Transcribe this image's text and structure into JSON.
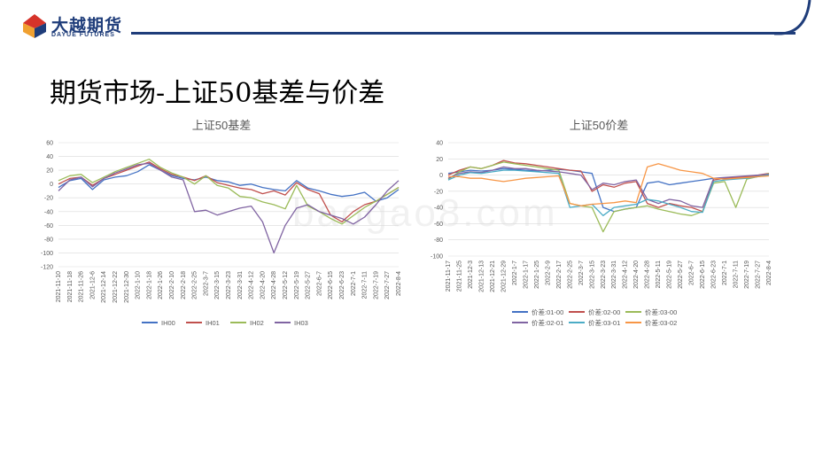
{
  "brand": {
    "name_cn": "大越期货",
    "name_en": "DAYUE FUTURES",
    "colors": {
      "navy": "#1f3d7a",
      "red": "#d6332a",
      "orange": "#f0a030"
    }
  },
  "page": {
    "title": "期货市场-上证50基差与价差"
  },
  "watermark": {
    "text": "baogao8.com"
  },
  "chart_data": [
    {
      "type": "line",
      "title": "上证50基差",
      "xlabel": "",
      "ylabel": "",
      "ylim": [
        -120,
        60
      ],
      "y_ticks": [
        "60",
        "40",
        "20",
        "0",
        "-20",
        "-40",
        "-60",
        "-80",
        "-100",
        "-120"
      ],
      "x_tick_labels": [
        "2021-11-10",
        "2021-11-18",
        "2021-11-26",
        "2021-12-6",
        "2021-12-14",
        "2021-12-22",
        "2021-12-30",
        "2022-1-10",
        "2022-1-18",
        "2022-1-26",
        "2022-2-10",
        "2022-2-18",
        "2022-2-25",
        "2022-3-7",
        "2022-3-15",
        "2022-3-23",
        "2022-3-31",
        "2022-4-12",
        "2022-4-20",
        "2022-4-28",
        "2022-5-12",
        "2022-5-19",
        "2022-5-27",
        "2022-6-7",
        "2022-6-15",
        "2022-6-23",
        "2022-7-1",
        "2022-7-11",
        "2022-7-19",
        "2022-7-27",
        "2022-8-4"
      ],
      "grid": true,
      "legend_position": "bottom",
      "series": [
        {
          "name": "IH00",
          "color": "#4472c4",
          "values": [
            -5,
            5,
            8,
            -8,
            6,
            10,
            12,
            18,
            28,
            20,
            12,
            8,
            6,
            10,
            5,
            3,
            -2,
            0,
            -5,
            -8,
            -10,
            5,
            -6,
            -10,
            -15,
            -18,
            -16,
            -12,
            -25,
            -20,
            -8
          ]
        },
        {
          "name": "IH01",
          "color": "#c0504d",
          "values": [
            0,
            8,
            10,
            -2,
            8,
            14,
            20,
            26,
            32,
            22,
            14,
            10,
            5,
            12,
            2,
            -2,
            -6,
            -8,
            -14,
            -10,
            -16,
            2,
            -8,
            -14,
            -45,
            -55,
            -40,
            -30,
            -25,
            -15,
            -5
          ]
        },
        {
          "name": "IH02",
          "color": "#9bbb59",
          "values": [
            5,
            12,
            14,
            2,
            10,
            18,
            24,
            30,
            36,
            24,
            16,
            10,
            0,
            12,
            -2,
            -6,
            -18,
            -20,
            -26,
            -30,
            -36,
            -2,
            -32,
            -40,
            -50,
            -58,
            -46,
            -34,
            -25,
            -15,
            -5
          ]
        },
        {
          "name": "IH03",
          "color": "#8064a2",
          "values": [
            -10,
            6,
            10,
            -4,
            8,
            16,
            22,
            28,
            30,
            20,
            10,
            6,
            -40,
            -38,
            -45,
            -40,
            -35,
            -32,
            -55,
            -100,
            -60,
            -35,
            -30,
            -40,
            -45,
            -50,
            -58,
            -48,
            -30,
            -10,
            5
          ]
        }
      ]
    },
    {
      "type": "line",
      "title": "上证50价差",
      "xlabel": "",
      "ylabel": "",
      "ylim": [
        -100,
        40
      ],
      "y_ticks": [
        "40",
        "20",
        "0",
        "-20",
        "-40",
        "-60",
        "-80",
        "-100"
      ],
      "x_tick_labels": [
        "2021-11-17",
        "2021-11-25",
        "2021-12-3",
        "2021-12-13",
        "2021-12-21",
        "2021-12-29",
        "2022-1-7",
        "2022-1-17",
        "2022-1-25",
        "2022-2-9",
        "2022-2-17",
        "2022-2-25",
        "2022-3-7",
        "2022-3-15",
        "2022-3-23",
        "2022-3-31",
        "2022-4-12",
        "2022-4-20",
        "2022-4-28",
        "2022-5-11",
        "2022-5-19",
        "2022-5-27",
        "2022-6-7",
        "2022-6-15",
        "2022-6-23",
        "2022-7-1",
        "2022-7-11",
        "2022-7-19",
        "2022-7-27",
        "2022-8-4"
      ],
      "grid": true,
      "legend_position": "bottom",
      "series": [
        {
          "name": "价差:01-00",
          "color": "#4472c4",
          "values": [
            2,
            4,
            6,
            5,
            6,
            8,
            7,
            6,
            5,
            6,
            7,
            6,
            4,
            2,
            -40,
            -45,
            -42,
            -40,
            -10,
            -8,
            -12,
            -10,
            -8,
            -6,
            -4,
            -5,
            -3,
            -2,
            -1,
            0
          ]
        },
        {
          "name": "价差:02-00",
          "color": "#c0504d",
          "values": [
            0,
            6,
            10,
            8,
            12,
            18,
            15,
            14,
            12,
            10,
            8,
            6,
            5,
            -20,
            -12,
            -15,
            -10,
            -8,
            -35,
            -40,
            -35,
            -38,
            -40,
            -45,
            -6,
            -4,
            -3,
            -2,
            0,
            2
          ]
        },
        {
          "name": "价差:03-00",
          "color": "#9bbb59",
          "values": [
            -5,
            4,
            10,
            8,
            12,
            16,
            14,
            12,
            10,
            8,
            6,
            -35,
            -38,
            -40,
            -70,
            -45,
            -42,
            -40,
            -38,
            -42,
            -45,
            -48,
            -50,
            -45,
            -10,
            -8,
            -40,
            -5,
            -2,
            2
          ]
        },
        {
          "name": "价差:02-01",
          "color": "#8064a2",
          "values": [
            -4,
            2,
            4,
            3,
            6,
            10,
            8,
            8,
            6,
            5,
            4,
            2,
            0,
            -18,
            -10,
            -12,
            -8,
            -6,
            -30,
            -35,
            -30,
            -32,
            -38,
            -40,
            -4,
            -3,
            -2,
            -1,
            0,
            1
          ]
        },
        {
          "name": "价差:03-01",
          "color": "#4bacc6",
          "values": [
            -6,
            0,
            3,
            2,
            4,
            6,
            6,
            5,
            4,
            3,
            2,
            -40,
            -38,
            -36,
            -50,
            -40,
            -38,
            -36,
            -30,
            -32,
            -36,
            -40,
            -45,
            -46,
            -8,
            -6,
            -5,
            -4,
            -2,
            0
          ]
        },
        {
          "name": "价差:03-02",
          "color": "#f79646",
          "values": [
            -2,
            -2,
            -4,
            -4,
            -6,
            -8,
            -6,
            -4,
            -3,
            -2,
            -1,
            -35,
            -38,
            -36,
            -35,
            -34,
            -32,
            -34,
            10,
            14,
            10,
            6,
            4,
            2,
            -4,
            -5,
            -4,
            -3,
            -2,
            -1
          ]
        }
      ]
    }
  ]
}
